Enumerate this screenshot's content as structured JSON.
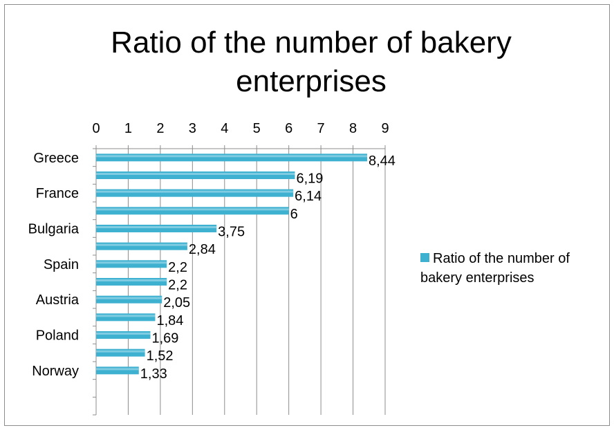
{
  "chart_data": {
    "type": "bar",
    "orientation": "horizontal",
    "title": "Ratio of the number of bakery enterprises",
    "categories": [
      "Greece",
      "",
      "France",
      "",
      "Bulgaria",
      "",
      "Spain",
      "",
      "Austria",
      "",
      "Poland",
      "",
      "Norway",
      "",
      ""
    ],
    "series": [
      {
        "name": "Ratio of the number of bakery enterprises",
        "values": [
          8.44,
          6.19,
          6.14,
          6,
          3.75,
          2.84,
          2.2,
          2.2,
          2.05,
          1.84,
          1.69,
          1.52,
          1.33,
          null,
          null
        ],
        "labels": [
          "8,44",
          "6,19",
          "6,14",
          "6",
          "3,75",
          "2,84",
          "2,2",
          "2,2",
          "2,05",
          "1,84",
          "1,69",
          "1,52",
          "1,33",
          "",
          ""
        ],
        "color": "#3EB1D1"
      }
    ],
    "x_ticks": [
      "0",
      "1",
      "2",
      "3",
      "4",
      "5",
      "6",
      "7",
      "8",
      "9"
    ],
    "xlim": [
      0,
      9
    ],
    "x_axis_position": "top",
    "grid": "vertical",
    "legend_position": "right"
  }
}
